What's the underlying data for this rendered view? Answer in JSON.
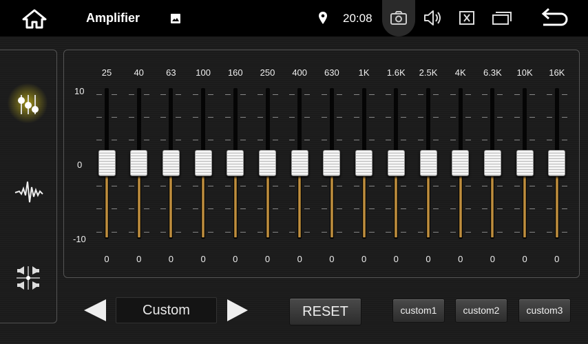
{
  "topbar": {
    "title": "Amplifier",
    "time": "20:08",
    "icons": [
      "home-icon",
      "gallery-icon",
      "location-pin-icon",
      "camera-icon",
      "volume-icon",
      "close-box-icon",
      "windows-icon",
      "back-icon"
    ]
  },
  "sidebar": {
    "items": [
      {
        "name": "equalizer",
        "icon": "equalizer-sliders-icon",
        "active": true
      },
      {
        "name": "sound-effect",
        "icon": "waveform-icon"
      },
      {
        "name": "balance",
        "icon": "speaker-balance-icon"
      }
    ],
    "accent": "#d4c21a"
  },
  "eq": {
    "y_labels": [
      "10",
      "0",
      "-10"
    ],
    "range": [
      -10,
      10
    ],
    "bands": [
      {
        "freq": "25",
        "value": 0
      },
      {
        "freq": "40",
        "value": 0
      },
      {
        "freq": "63",
        "value": 0
      },
      {
        "freq": "100",
        "value": 0
      },
      {
        "freq": "160",
        "value": 0
      },
      {
        "freq": "250",
        "value": 0
      },
      {
        "freq": "400",
        "value": 0
      },
      {
        "freq": "630",
        "value": 0
      },
      {
        "freq": "1K",
        "value": 0
      },
      {
        "freq": "1.6K",
        "value": 0
      },
      {
        "freq": "2.5K",
        "value": 0
      },
      {
        "freq": "4K",
        "value": 0
      },
      {
        "freq": "6.3K",
        "value": 0
      },
      {
        "freq": "10K",
        "value": 0
      },
      {
        "freq": "16K",
        "value": 0
      }
    ]
  },
  "controls": {
    "preset": "Custom",
    "reset": "RESET",
    "customs": [
      "custom1",
      "custom2",
      "custom3"
    ]
  }
}
